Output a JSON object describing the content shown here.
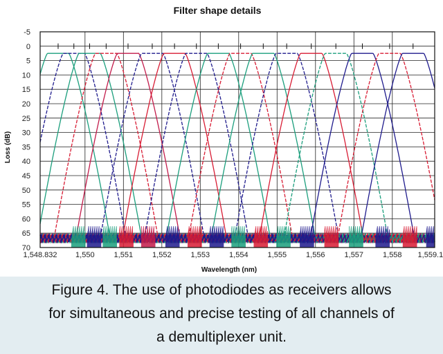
{
  "chart_data": {
    "type": "line",
    "title": "Filter shape details",
    "xlabel": "Wavelength (nm)",
    "ylabel": "Loss (dB)",
    "y_reversed": true,
    "ylim": [
      -5,
      70
    ],
    "yticks": [
      -5,
      0,
      5,
      10,
      15,
      20,
      25,
      30,
      35,
      40,
      45,
      50,
      55,
      60,
      65,
      70
    ],
    "xlim": [
      1548.832,
      1559.103
    ],
    "xticks": [
      {
        "value": 1548.832,
        "label": "1,548.832"
      },
      {
        "value": 1550,
        "label": "1,550"
      },
      {
        "value": 1551,
        "label": "1,551"
      },
      {
        "value": 1552,
        "label": "1,552"
      },
      {
        "value": 1553,
        "label": "1,553"
      },
      {
        "value": 1554,
        "label": "1,554"
      },
      {
        "value": 1555,
        "label": "1,555"
      },
      {
        "value": 1556,
        "label": "1,556"
      },
      {
        "value": 1557,
        "label": "1,557"
      },
      {
        "value": 1558,
        "label": "1,558"
      },
      {
        "value": 1559.103,
        "label": "1,559.103"
      }
    ],
    "grid": true,
    "legend": "none",
    "insertion_loss_db": 2.5,
    "passband_halfwidth_nm": 0.28,
    "noise_floor_db": 68,
    "series": [
      {
        "center": 1549.3,
        "color": "#1a9e7c"
      },
      {
        "center": 1549.71,
        "color": "#1e1a8c"
      },
      {
        "center": 1550.12,
        "color": "#1a9e7c"
      },
      {
        "center": 1550.55,
        "color": "#d81b33"
      },
      {
        "center": 1551.12,
        "color": "#c21a4a"
      },
      {
        "center": 1551.75,
        "color": "#1e1a8c"
      },
      {
        "center": 1552.33,
        "color": "#d81b33"
      },
      {
        "center": 1552.9,
        "color": "#1e1a8c"
      },
      {
        "center": 1553.47,
        "color": "#1a9e7c"
      },
      {
        "center": 1554.05,
        "color": "#d81b33"
      },
      {
        "center": 1554.64,
        "color": "#1a9e7c"
      },
      {
        "center": 1555.25,
        "color": "#1e1a8c"
      },
      {
        "center": 1555.89,
        "color": "#d81b33"
      },
      {
        "center": 1556.53,
        "color": "#1a9e7c"
      },
      {
        "center": 1557.22,
        "color": "#1e1a8c"
      },
      {
        "center": 1557.93,
        "color": "#d81b33"
      },
      {
        "center": 1558.54,
        "color": "#1e1a8c"
      }
    ]
  },
  "caption": {
    "line1": "Figure 4. The use of photodiodes as receivers allows",
    "line2": "for simultaneous and precise testing of all channels of",
    "line3": "a demultiplexer unit."
  }
}
